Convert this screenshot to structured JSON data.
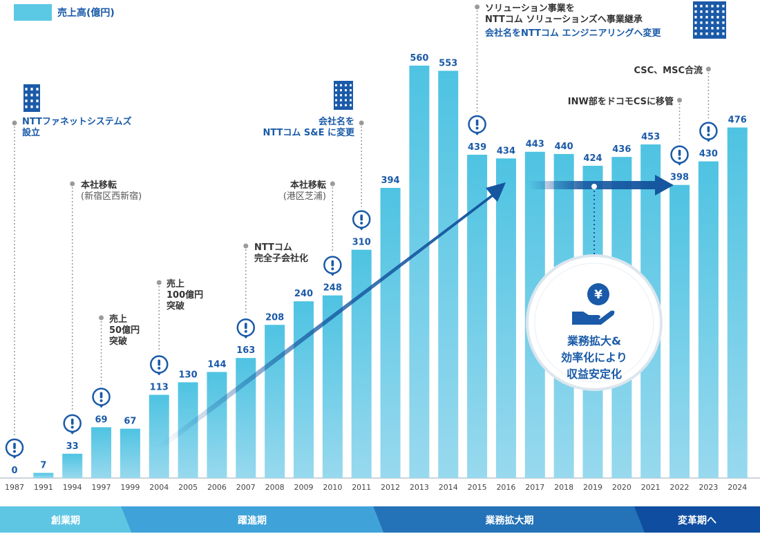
{
  "legend": {
    "label": "売上高(億円)",
    "color": "#5BC8E4"
  },
  "chart_data": {
    "type": "bar",
    "title": "",
    "xlabel": "",
    "ylabel": "",
    "legend_position": "top-left",
    "grid": false,
    "categories": [
      "1987",
      "1991",
      "1994",
      "1997",
      "1999",
      "2004",
      "2005",
      "2006",
      "2007",
      "2008",
      "2009",
      "2010",
      "2011",
      "2012",
      "2013",
      "2014",
      "2015",
      "2016",
      "2017",
      "2018",
      "2019",
      "2020",
      "2021",
      "2022",
      "2023",
      "2024"
    ],
    "series": [
      {
        "name": "売上高(億円)",
        "values": [
          0,
          7,
          33,
          69,
          67,
          113,
          130,
          144,
          163,
          208,
          240,
          248,
          310,
          394,
          560,
          553,
          439,
          434,
          443,
          440,
          424,
          436,
          453,
          398,
          430,
          476
        ]
      }
    ],
    "ylim": [
      0,
      560
    ]
  },
  "events": [
    {
      "year": "1987",
      "lines": [
        "NTTファネットシステムズ",
        "設立"
      ],
      "alert": true,
      "building": true
    },
    {
      "year": "1994",
      "lines": [
        "本社移転"
      ],
      "sub": "(新宿区西新宿)",
      "alert": true
    },
    {
      "year": "1997",
      "lines": [
        "売上",
        "50億円",
        "突破"
      ],
      "alert": true
    },
    {
      "year": "2004",
      "lines": [
        "売上",
        "100億円",
        "突破"
      ],
      "alert": true
    },
    {
      "year": "2007",
      "lines": [
        "NTTコム",
        "完全子会社化"
      ],
      "alert": true
    },
    {
      "year": "2010",
      "lines": [
        "本社移転"
      ],
      "sub": "(港区芝浦)",
      "alert": true
    },
    {
      "year": "2011",
      "lines": [
        "会社名を",
        "NTTコム S&E に変更"
      ],
      "alert": true,
      "building": true
    },
    {
      "year": "2015",
      "lines": [
        "ソリューション事業を",
        "NTTコム ソリューションズへ事業継承"
      ],
      "sub_blue": "会社名をNTTコム エンジニアリングへ変更",
      "alert": true,
      "building": true
    },
    {
      "year": "2022",
      "lines": [
        "INW部をドコモCSに移管"
      ],
      "alert": true
    },
    {
      "year": "2023",
      "lines": [
        "CSC、MSC合流"
      ],
      "alert": true
    }
  ],
  "callout": {
    "lines": [
      "業務拡大&",
      "効率化により",
      "収益安定化"
    ],
    "icon": "yen-hand-icon"
  },
  "phases": [
    {
      "label": "創業期",
      "color": "#5EC6E3"
    },
    {
      "label": "躍進期",
      "color": "#3FA3D9"
    },
    {
      "label": "業務拡大期",
      "color": "#2472B8"
    },
    {
      "label": "変革期へ",
      "color": "#0E4DA0"
    }
  ],
  "colors": {
    "value_label": "#1A5AA8",
    "event_text": "#333333",
    "event_blue": "#1A5AA8",
    "arrow": "#14549E",
    "axis": "#444444"
  }
}
